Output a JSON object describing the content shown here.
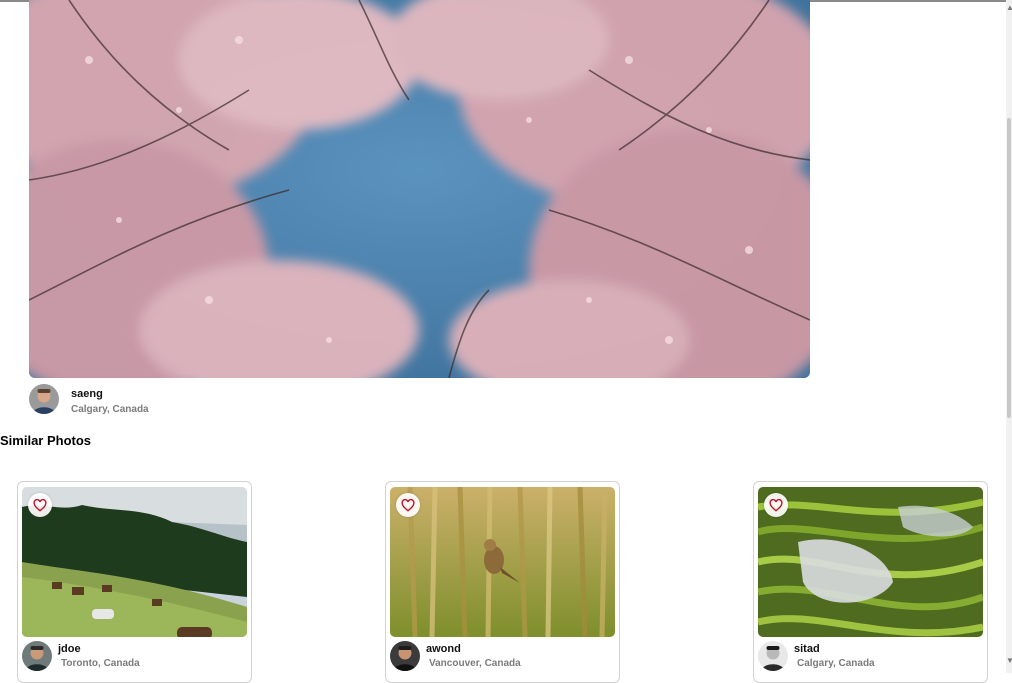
{
  "featured": {
    "author": {
      "name": "saeng",
      "location": "Calgary, Canada"
    }
  },
  "similar": {
    "title": "Similar Photos",
    "items": [
      {
        "author": "jdoe",
        "location": "Toronto, Canada"
      },
      {
        "author": "awond",
        "location": "Vancouver, Canada"
      },
      {
        "author": "sitad",
        "location": "Calgary, Canada"
      }
    ]
  },
  "icons": {
    "like": "heart-icon",
    "scroll_up": "scroll-up-arrow-icon",
    "scroll_down": "scroll-down-arrow-icon"
  },
  "colors": {
    "heart": "#c8102e",
    "sky": "#4d86b3",
    "blossom": "#e9b4bd"
  }
}
